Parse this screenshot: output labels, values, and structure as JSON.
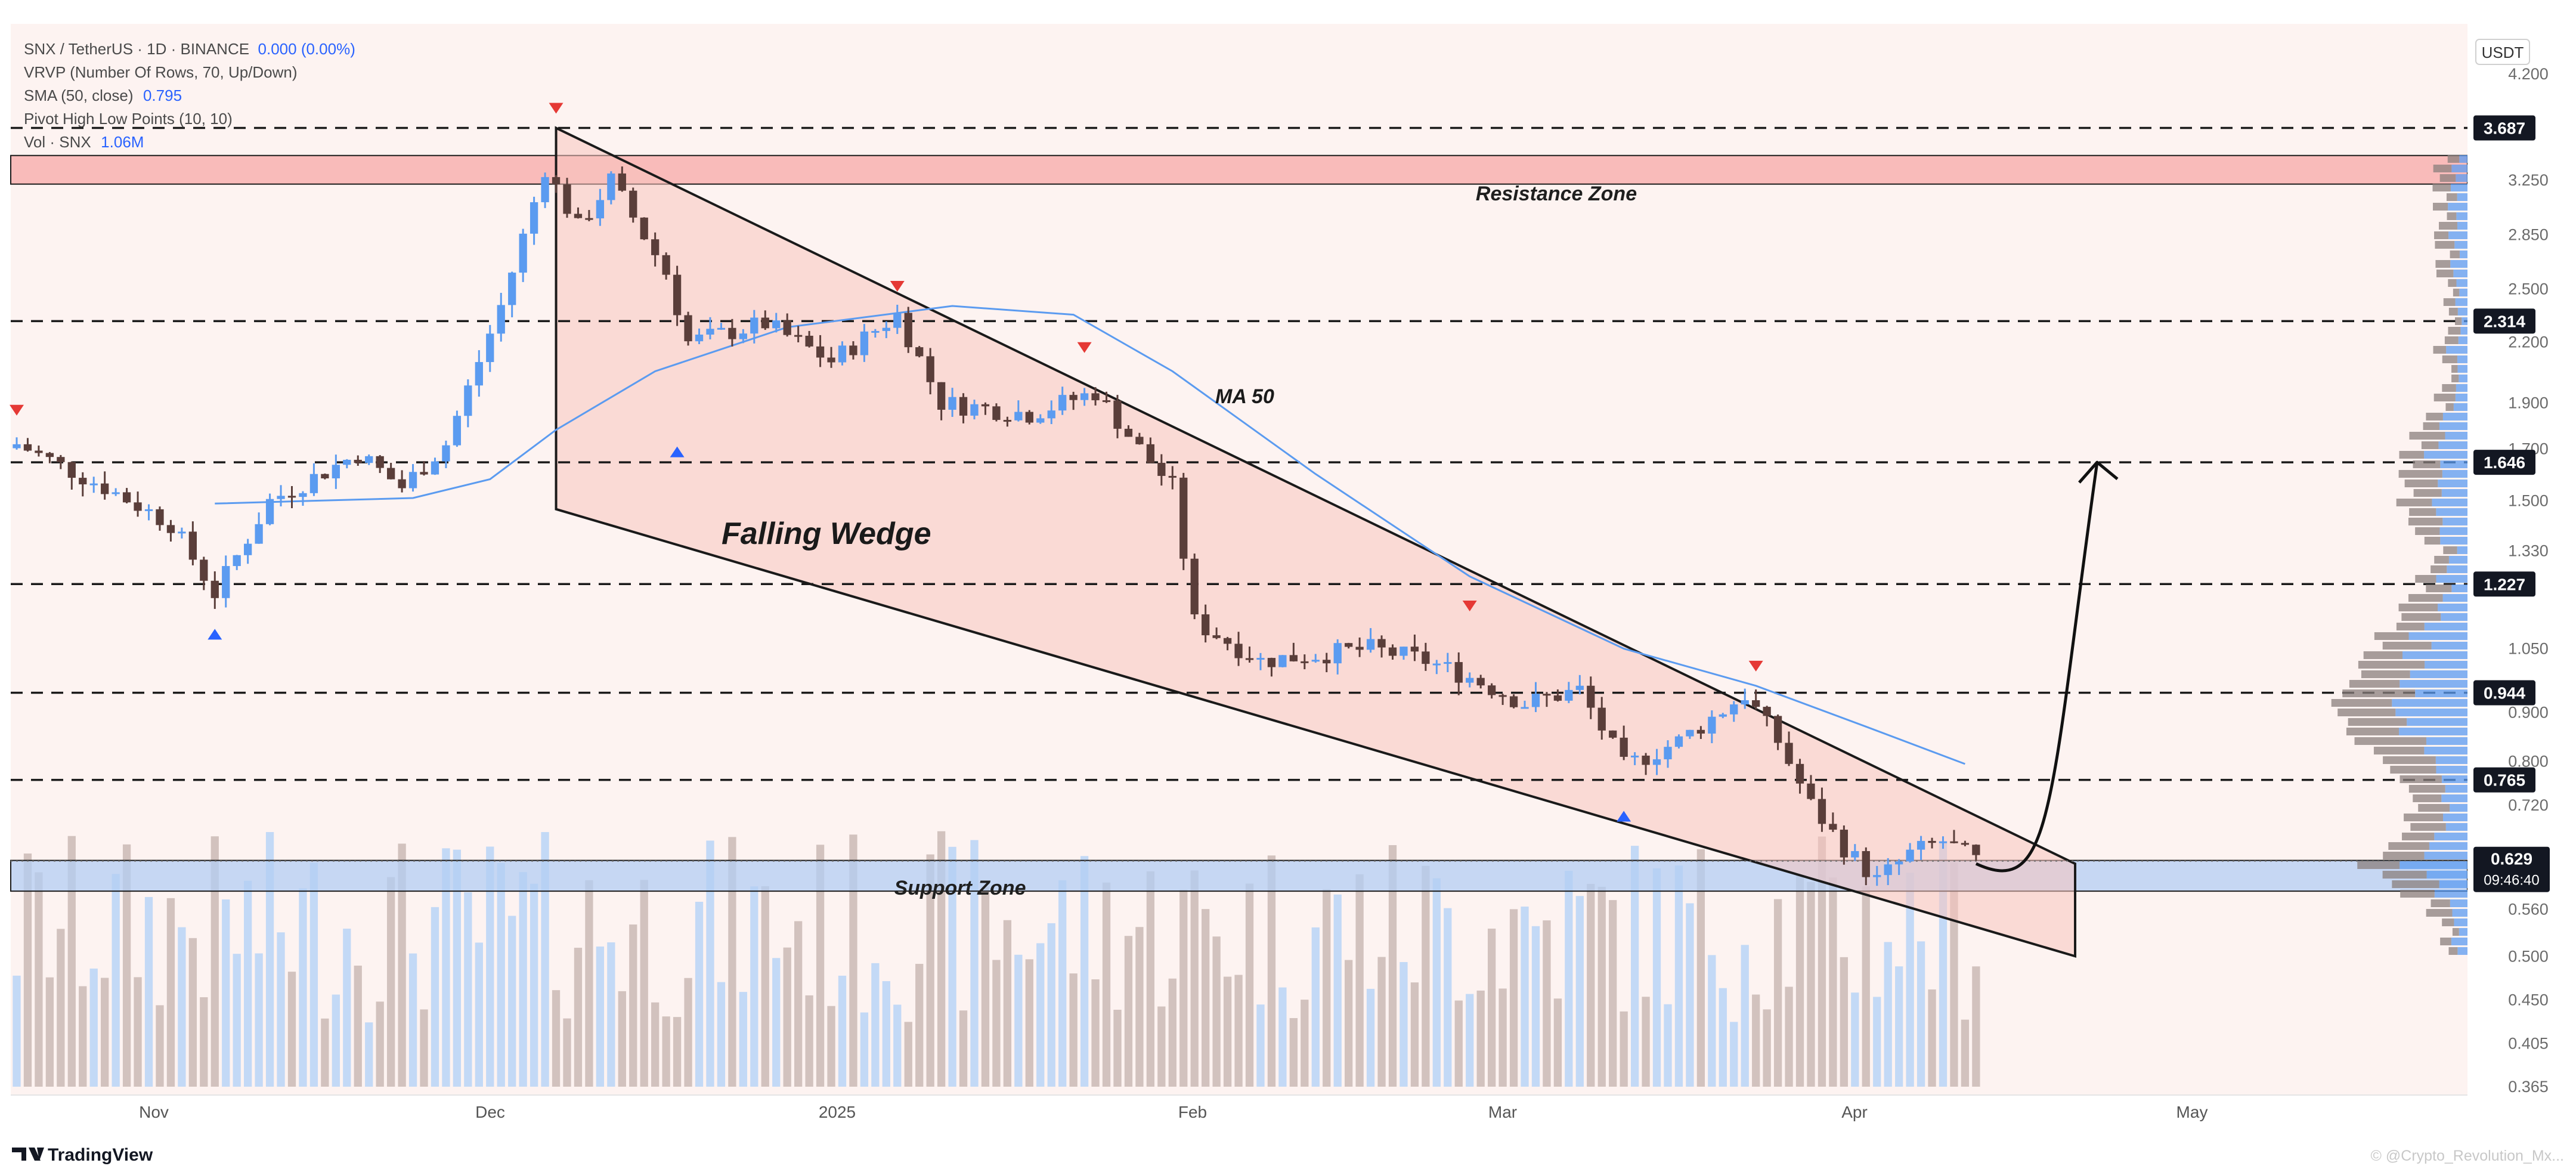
{
  "header": {
    "symbol_line": "SNX / TetherUS · 1D · BINANCE",
    "symbol_change": "0.000 (0.00%)",
    "vrvp": "VRVP (Number Of Rows, 70, Up/Down)",
    "sma_label": "SMA (50, close)",
    "sma_value": "0.795",
    "pivot": "Pivot High Low Points (10, 10)",
    "vol_label": "Vol · SNX",
    "vol_value": "1.06M"
  },
  "price_axis": {
    "currency": "USDT",
    "ticks": [
      "4.200",
      "3.250",
      "2.850",
      "2.500",
      "2.200",
      "1.900",
      "1.700",
      "1.500",
      "1.330",
      "1.050",
      "0.900",
      "0.800",
      "0.720",
      "0.560",
      "0.500",
      "0.450",
      "0.405",
      "0.365"
    ]
  },
  "badges": {
    "b1": "3.687",
    "b2": "2.314",
    "b3": "1.646",
    "b4": "1.227",
    "b5": "0.944",
    "b6": "0.765",
    "current_price": "0.629",
    "countdown": "09:46:40"
  },
  "time_axis": {
    "ticks": [
      "Nov",
      "Dec",
      "2025",
      "Feb",
      "Mar",
      "Apr",
      "May"
    ]
  },
  "annotations": {
    "resistance": "Resistance Zone",
    "support": "Support Zone",
    "pattern": "Falling Wedge",
    "ma": "MA 50"
  },
  "footer": {
    "logo": "TradingView",
    "watermark": "© @Crypto_Revolution_Mx..."
  },
  "colors": {
    "up": "#5b9bf0",
    "down": "#5a3e3a",
    "up_volume": "#bcd6f6",
    "down_volume": "#cdbdb8",
    "resistance_zone": "#f7a3a3",
    "support_zone": "#b3cdf3",
    "wedge_fill": "#f8c4bd",
    "ma_line": "#5b9bf0",
    "badge_bg": "#131722"
  },
  "chart_data": {
    "type": "candlestick",
    "symbol": "SNX / TetherUS",
    "interval": "1D",
    "exchange": "BINANCE",
    "price_scale": "log",
    "ylim": [
      0.365,
      4.2
    ],
    "x_range": [
      "2024-10-20",
      "2025-05-08"
    ],
    "key_levels": [
      3.687,
      2.314,
      1.646,
      1.227,
      0.944,
      0.765,
      0.629
    ],
    "resistance_zone": [
      3.22,
      3.45
    ],
    "support_zone": [
      0.585,
      0.63
    ],
    "current_price": 0.629,
    "sma50_last": 0.795,
    "falling_wedge": {
      "upper": [
        {
          "date": "2024-12-08",
          "price": 3.687
        },
        {
          "date": "2025-04-25",
          "price": 0.625
        }
      ],
      "lower": [
        {
          "date": "2024-12-08",
          "price": 1.47
        },
        {
          "date": "2025-04-25",
          "price": 0.5
        }
      ]
    },
    "projection": [
      {
        "date": "2025-04-16",
        "price": 0.625
      },
      {
        "date": "2025-04-27",
        "price": 1.646
      }
    ],
    "pivot_highs": [
      {
        "date": "2024-10-20",
        "price": 1.78
      },
      {
        "date": "2024-12-08",
        "price": 3.687
      },
      {
        "date": "2025-01-08",
        "price": 2.4
      },
      {
        "date": "2025-01-25",
        "price": 2.07
      },
      {
        "date": "2025-03-01",
        "price": 1.11
      },
      {
        "date": "2025-03-27",
        "price": 0.96
      }
    ],
    "pivot_lows": [
      {
        "date": "2024-11-07",
        "price": 1.14
      },
      {
        "date": "2024-12-19",
        "price": 1.77
      },
      {
        "date": "2025-03-15",
        "price": 0.735
      }
    ],
    "sma50": [
      {
        "date": "2024-11-07",
        "price": 1.49
      },
      {
        "date": "2024-11-25",
        "price": 1.51
      },
      {
        "date": "2024-12-02",
        "price": 1.58
      },
      {
        "date": "2024-12-08",
        "price": 1.78
      },
      {
        "date": "2024-12-17",
        "price": 2.05
      },
      {
        "date": "2024-12-29",
        "price": 2.28
      },
      {
        "date": "2025-01-13",
        "price": 2.4
      },
      {
        "date": "2025-01-24",
        "price": 2.35
      },
      {
        "date": "2025-02-02",
        "price": 2.05
      },
      {
        "date": "2025-02-15",
        "price": 1.6
      },
      {
        "date": "2025-03-01",
        "price": 1.25
      },
      {
        "date": "2025-03-15",
        "price": 1.05
      },
      {
        "date": "2025-03-27",
        "price": 0.96
      },
      {
        "date": "2025-04-06",
        "price": 0.87
      },
      {
        "date": "2025-04-15",
        "price": 0.795
      }
    ],
    "price_path": [
      {
        "date": "2024-10-20",
        "price": 1.72
      },
      {
        "date": "2024-10-28",
        "price": 1.55
      },
      {
        "date": "2024-11-03",
        "price": 1.42
      },
      {
        "date": "2024-11-07",
        "price": 1.2
      },
      {
        "date": "2024-11-12",
        "price": 1.5
      },
      {
        "date": "2024-11-20",
        "price": 1.68
      },
      {
        "date": "2024-11-24",
        "price": 1.55
      },
      {
        "date": "2024-11-28",
        "price": 1.72
      },
      {
        "date": "2024-12-03",
        "price": 2.4
      },
      {
        "date": "2024-12-07",
        "price": 3.35
      },
      {
        "date": "2024-12-10",
        "price": 2.9
      },
      {
        "date": "2024-12-13",
        "price": 3.25
      },
      {
        "date": "2024-12-18",
        "price": 2.6
      },
      {
        "date": "2024-12-20",
        "price": 2.2
      },
      {
        "date": "2024-12-27",
        "price": 2.3
      },
      {
        "date": "2025-01-02",
        "price": 2.1
      },
      {
        "date": "2025-01-08",
        "price": 2.35
      },
      {
        "date": "2025-01-12",
        "price": 1.9
      },
      {
        "date": "2025-01-20",
        "price": 1.85
      },
      {
        "date": "2025-01-26",
        "price": 1.95
      },
      {
        "date": "2025-01-30",
        "price": 1.7
      },
      {
        "date": "2025-02-02",
        "price": 1.55
      },
      {
        "date": "2025-02-04",
        "price": 1.12
      },
      {
        "date": "2025-02-10",
        "price": 1.02
      },
      {
        "date": "2025-02-20",
        "price": 1.05
      },
      {
        "date": "2025-02-25",
        "price": 1.02
      },
      {
        "date": "2025-03-01",
        "price": 0.98
      },
      {
        "date": "2025-03-06",
        "price": 0.92
      },
      {
        "date": "2025-03-11",
        "price": 0.95
      },
      {
        "date": "2025-03-15",
        "price": 0.79
      },
      {
        "date": "2025-03-20",
        "price": 0.84
      },
      {
        "date": "2025-03-26",
        "price": 0.94
      },
      {
        "date": "2025-03-29",
        "price": 0.84
      },
      {
        "date": "2025-04-01",
        "price": 0.72
      },
      {
        "date": "2025-04-04",
        "price": 0.65
      },
      {
        "date": "2025-04-07",
        "price": 0.6
      },
      {
        "date": "2025-04-10",
        "price": 0.64
      },
      {
        "date": "2025-04-13",
        "price": 0.66
      },
      {
        "date": "2025-04-16",
        "price": 0.629
      }
    ]
  }
}
